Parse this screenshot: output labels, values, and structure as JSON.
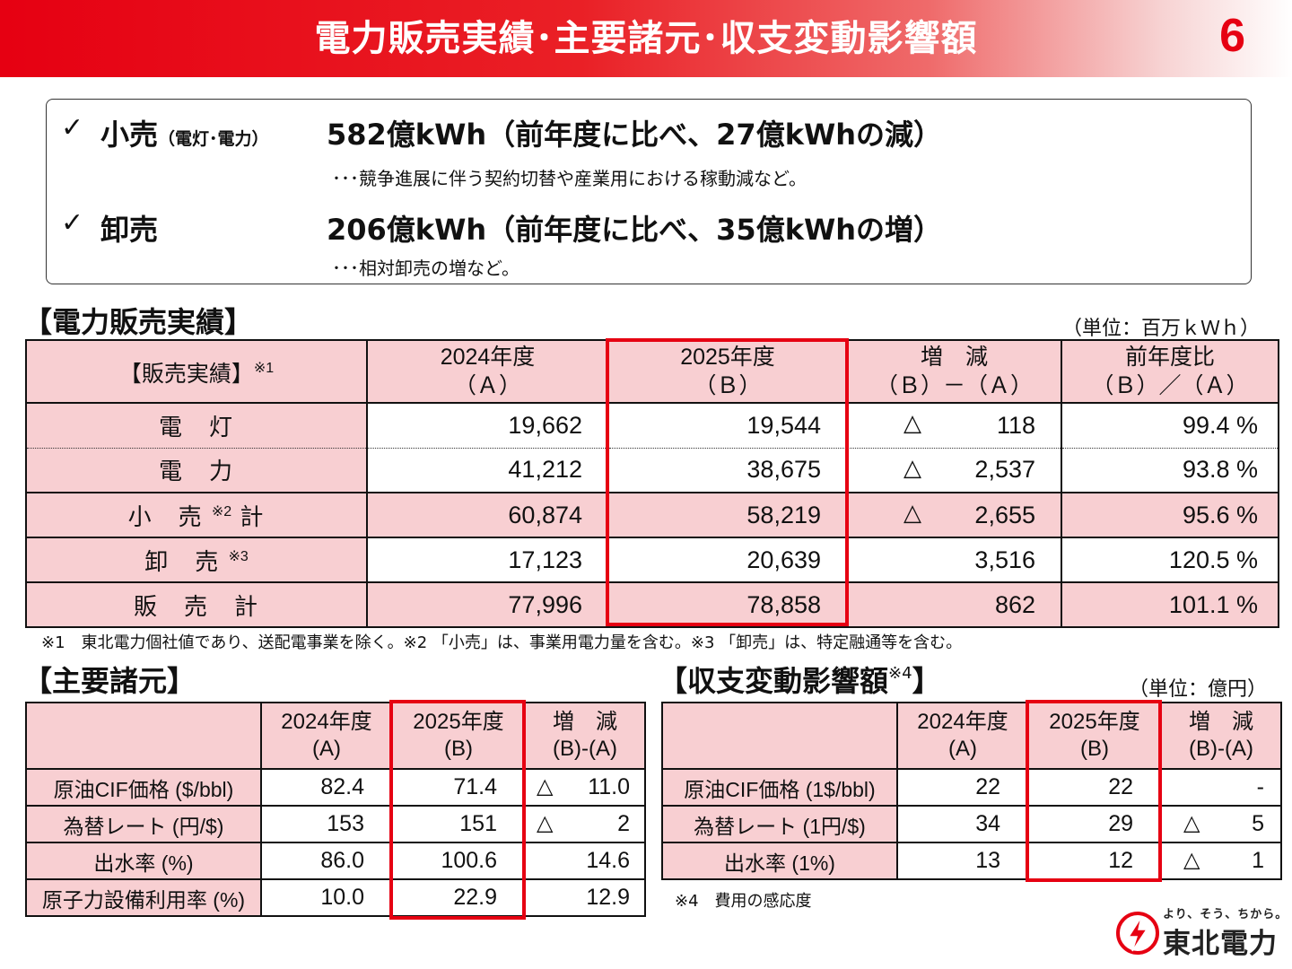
{
  "header": {
    "title": "電力販売実績･主要諸元･収支変動影響額",
    "page_number": "6"
  },
  "summary": {
    "check_mark": "✓",
    "items": [
      {
        "label": "小売",
        "label_sub": "（電灯･電力）",
        "headline": "582億kWh（前年度に比べ、27億kWhの減）",
        "detail": "･･･競争進展に伴う契約切替や産業用における稼動減など。"
      },
      {
        "label": "卸売",
        "label_sub": "",
        "headline": "206億kWh（前年度に比べ、35億kWhの増）",
        "detail": "･･･相対卸売の増など。"
      }
    ]
  },
  "sales": {
    "section_title": "【電力販売実績】",
    "unit": "（単位：百万ｋＷｈ）",
    "header": {
      "row_label": "【販売実績】",
      "row_label_note": "※1",
      "col_a_year": "2024年度",
      "col_a_sym": "（Ａ）",
      "col_b_year": "2025年度",
      "col_b_sym": "（Ｂ）",
      "col_diff_title": "増　減",
      "col_diff_formula": "（Ｂ）－（Ａ）",
      "col_ratio_title": "前年度比",
      "col_ratio_formula": "（Ｂ）／（Ａ）"
    },
    "rows": [
      {
        "label": "電　灯",
        "note": "",
        "suffix": "",
        "a": "19,662",
        "b": "19,544",
        "decrease_mark": "△",
        "diff": "118",
        "ratio": "99.4 %"
      },
      {
        "label": "電　力",
        "note": "",
        "suffix": "",
        "a": "41,212",
        "b": "38,675",
        "decrease_mark": "△",
        "diff": "2,537",
        "ratio": "93.8 %"
      },
      {
        "label": "小　売",
        "note": "※2",
        "suffix": "計",
        "a": "60,874",
        "b": "58,219",
        "decrease_mark": "△",
        "diff": "2,655",
        "ratio": "95.6 %"
      },
      {
        "label": "卸　売",
        "note": "※3",
        "suffix": "",
        "a": "17,123",
        "b": "20,639",
        "decrease_mark": "",
        "diff": "3,516",
        "ratio": "120.5 %"
      },
      {
        "label": "販　売　計",
        "note": "",
        "suffix": "",
        "a": "77,996",
        "b": "78,858",
        "decrease_mark": "",
        "diff": "862",
        "ratio": "101.1 %"
      }
    ],
    "footnote": "※1　東北電力個社値であり、送配電事業を除く。※2 「小売」は、事業用電力量を含む。※3 「卸売」は、特定融通等を含む。"
  },
  "params": {
    "section_title": "【主要諸元】",
    "header": {
      "col_a_year": "2024年度",
      "col_a_sym": "(A)",
      "col_b_year": "2025年度",
      "col_b_sym": "(B)",
      "col_diff_title": "増　減",
      "col_diff_formula": "(B)-(A)"
    },
    "rows": [
      {
        "label": "原油CIF価格 ($/bbl)",
        "a": "82.4",
        "b": "71.4",
        "decrease_mark": "△",
        "diff": "11.0"
      },
      {
        "label": "為替レート (円/$)",
        "a": "153",
        "b": "151",
        "decrease_mark": "△",
        "diff": "2"
      },
      {
        "label": "出水率 (%)",
        "a": "86.0",
        "b": "100.6",
        "decrease_mark": "",
        "diff": "14.6"
      },
      {
        "label": "原子力設備利用率 (%)",
        "a": "10.0",
        "b": "22.9",
        "decrease_mark": "",
        "diff": "12.9"
      }
    ]
  },
  "impact": {
    "section_title": "【収支変動影響額",
    "section_title_note": "※4",
    "section_title_end": "】",
    "unit": "（単位：億円）",
    "header": {
      "col_a_year": "2024年度",
      "col_a_sym": "(A)",
      "col_b_year": "2025年度",
      "col_b_sym": "(B)",
      "col_diff_title": "増　減",
      "col_diff_formula": "(B)-(A)"
    },
    "rows": [
      {
        "label": "原油CIF価格 (1$/bbl)",
        "a": "22",
        "b": "22",
        "decrease_mark": "",
        "diff": "-"
      },
      {
        "label": "為替レート (1円/$)",
        "a": "34",
        "b": "29",
        "decrease_mark": "△",
        "diff": "5"
      },
      {
        "label": "出水率 (1%)",
        "a": "13",
        "b": "12",
        "decrease_mark": "△",
        "diff": "1"
      }
    ],
    "footnote": "※4　費用の感応度"
  },
  "logo": {
    "tagline": "より、そう、ちから。",
    "name": "東北電力"
  },
  "colors": {
    "brand_red": "#e60012",
    "table_pink": "#f8cfd2"
  }
}
